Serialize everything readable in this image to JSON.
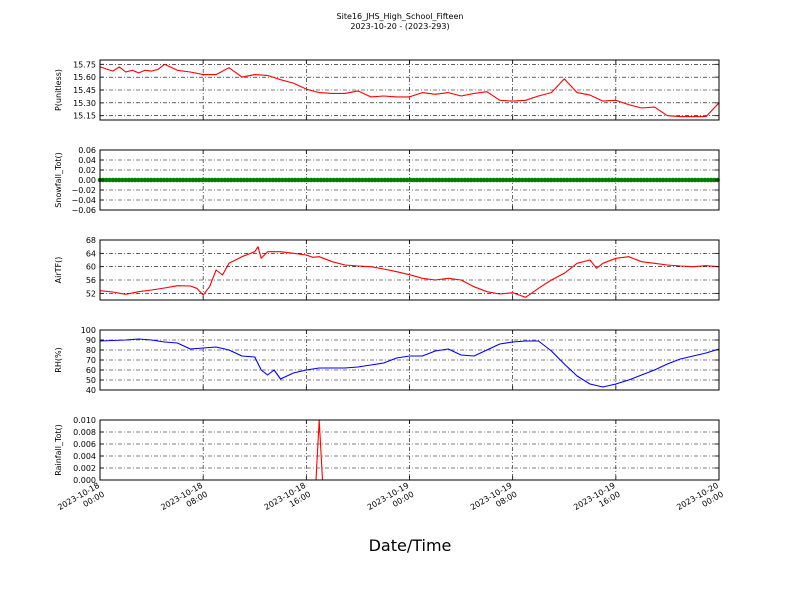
{
  "title": "Site16_JHS_High_School_Fifteen",
  "subtitle": "2023-10-20 - (2023-293)",
  "xlabel": "Date/Time",
  "x_range": [
    "2023-10-18 00:00",
    "2023-10-20 00:00"
  ],
  "x_ticks": [
    {
      "t": "2023-10-18 00:00",
      "l1": "2023-10-18",
      "l2": "00:00"
    },
    {
      "t": "2023-10-18 08:00",
      "l1": "2023-10-18",
      "l2": "08:00"
    },
    {
      "t": "2023-10-18 16:00",
      "l1": "2023-10-18",
      "l2": "16:00"
    },
    {
      "t": "2023-10-19 00:00",
      "l1": "2023-10-19",
      "l2": "00:00"
    },
    {
      "t": "2023-10-19 08:00",
      "l1": "2023-10-19",
      "l2": "08:00"
    },
    {
      "t": "2023-10-19 16:00",
      "l1": "2023-10-19",
      "l2": "16:00"
    },
    {
      "t": "2023-10-20 00:00",
      "l1": "2023-10-20",
      "l2": "00:00"
    }
  ],
  "chart_data": [
    {
      "type": "line",
      "ylabel": "P(unitless)",
      "ylim": [
        15.1,
        15.8
      ],
      "yticks": [
        15.15,
        15.3,
        15.45,
        15.6,
        15.75
      ],
      "ytick_labels": [
        "15.15",
        "15.30",
        "15.45",
        "15.60",
        "15.75"
      ],
      "grid": true,
      "color": "#ff0000",
      "x": [
        "2023-10-18 00:00",
        "2023-10-18 01:00",
        "2023-10-18 01:30",
        "2023-10-18 02:00",
        "2023-10-18 02:30",
        "2023-10-18 03:00",
        "2023-10-18 03:30",
        "2023-10-18 04:00",
        "2023-10-18 04:30",
        "2023-10-18 05:00",
        "2023-10-18 06:00",
        "2023-10-18 07:00",
        "2023-10-18 08:00",
        "2023-10-18 09:00",
        "2023-10-18 10:00",
        "2023-10-18 11:00",
        "2023-10-18 12:00",
        "2023-10-18 13:00",
        "2023-10-18 14:00",
        "2023-10-18 15:00",
        "2023-10-18 16:00",
        "2023-10-18 17:00",
        "2023-10-18 18:00",
        "2023-10-18 19:00",
        "2023-10-18 20:00",
        "2023-10-18 21:00",
        "2023-10-18 22:00",
        "2023-10-18 23:00",
        "2023-10-19 00:00",
        "2023-10-19 01:00",
        "2023-10-19 02:00",
        "2023-10-19 03:00",
        "2023-10-19 04:00",
        "2023-10-19 05:00",
        "2023-10-19 06:00",
        "2023-10-19 07:00",
        "2023-10-19 08:00",
        "2023-10-19 09:00",
        "2023-10-19 10:00",
        "2023-10-19 11:00",
        "2023-10-19 12:00",
        "2023-10-19 13:00",
        "2023-10-19 14:00",
        "2023-10-19 15:00",
        "2023-10-19 16:00",
        "2023-10-19 17:00",
        "2023-10-19 18:00",
        "2023-10-19 19:00",
        "2023-10-19 20:00",
        "2023-10-19 21:00",
        "2023-10-19 22:00",
        "2023-10-19 23:00",
        "2023-10-20 00:00"
      ],
      "y": [
        15.72,
        15.67,
        15.72,
        15.66,
        15.68,
        15.65,
        15.68,
        15.67,
        15.69,
        15.75,
        15.68,
        15.66,
        15.63,
        15.63,
        15.71,
        15.6,
        15.63,
        15.62,
        15.57,
        15.53,
        15.46,
        15.42,
        15.41,
        15.41,
        15.44,
        15.37,
        15.38,
        15.37,
        15.37,
        15.42,
        15.4,
        15.42,
        15.38,
        15.41,
        15.43,
        15.33,
        15.32,
        15.33,
        15.38,
        15.42,
        15.58,
        15.42,
        15.39,
        15.32,
        15.33,
        15.28,
        15.24,
        15.25,
        15.15,
        15.14,
        15.14,
        15.14,
        15.3
      ]
    },
    {
      "type": "scatter",
      "ylabel": "Snowfall_Tot()",
      "ylim": [
        -0.06,
        0.06
      ],
      "yticks": [
        -0.06,
        -0.04,
        -0.02,
        0.0,
        0.02,
        0.04,
        0.06
      ],
      "ytick_labels": [
        "−0.06",
        "−0.04",
        "−0.02",
        "0.00",
        "0.02",
        "0.04",
        "0.06"
      ],
      "grid": true,
      "color": "#007f00",
      "constant_value": 0.0,
      "x_span": [
        "2023-10-18 00:00",
        "2023-10-20 00:00"
      ]
    },
    {
      "type": "line",
      "ylabel": "AirTF()",
      "ylim": [
        50,
        68
      ],
      "yticks": [
        52,
        56,
        60,
        64,
        68
      ],
      "ytick_labels": [
        "52",
        "56",
        "60",
        "64",
        "68"
      ],
      "grid": true,
      "color": "#ff0000",
      "x": [
        "2023-10-18 00:00",
        "2023-10-18 01:00",
        "2023-10-18 02:00",
        "2023-10-18 03:00",
        "2023-10-18 04:00",
        "2023-10-18 05:00",
        "2023-10-18 06:00",
        "2023-10-18 07:00",
        "2023-10-18 07:30",
        "2023-10-18 08:00",
        "2023-10-18 08:30",
        "2023-10-18 09:00",
        "2023-10-18 09:30",
        "2023-10-18 10:00",
        "2023-10-18 11:00",
        "2023-10-18 12:00",
        "2023-10-18 12:15",
        "2023-10-18 12:30",
        "2023-10-18 13:00",
        "2023-10-18 14:00",
        "2023-10-18 15:00",
        "2023-10-18 16:00",
        "2023-10-18 16:30",
        "2023-10-18 17:00",
        "2023-10-18 18:00",
        "2023-10-18 19:00",
        "2023-10-18 20:00",
        "2023-10-18 21:00",
        "2023-10-18 22:00",
        "2023-10-18 23:00",
        "2023-10-19 00:00",
        "2023-10-19 01:00",
        "2023-10-19 02:00",
        "2023-10-19 03:00",
        "2023-10-19 04:00",
        "2023-10-19 05:00",
        "2023-10-19 06:00",
        "2023-10-19 07:00",
        "2023-10-19 08:00",
        "2023-10-19 08:30",
        "2023-10-19 09:00",
        "2023-10-19 10:00",
        "2023-10-19 11:00",
        "2023-10-19 12:00",
        "2023-10-19 13:00",
        "2023-10-19 14:00",
        "2023-10-19 14:30",
        "2023-10-19 15:00",
        "2023-10-19 16:00",
        "2023-10-19 17:00",
        "2023-10-19 18:00",
        "2023-10-19 19:00",
        "2023-10-19 20:00",
        "2023-10-19 21:00",
        "2023-10-19 22:00",
        "2023-10-19 23:00",
        "2023-10-20 00:00"
      ],
      "y": [
        52.8,
        52.4,
        51.7,
        52.5,
        53.0,
        53.6,
        54.3,
        54.2,
        53.5,
        51.5,
        54.0,
        59.0,
        57.5,
        61.0,
        63.0,
        64.5,
        66.0,
        62.5,
        64.5,
        64.5,
        64.0,
        63.5,
        62.8,
        63.0,
        61.5,
        60.5,
        60.2,
        60.0,
        59.3,
        58.5,
        57.6,
        56.5,
        56.0,
        56.5,
        56.0,
        54.0,
        52.5,
        51.8,
        52.2,
        51.5,
        50.8,
        53.5,
        56.0,
        58.0,
        61.0,
        62.0,
        59.5,
        61.0,
        62.5,
        63.0,
        61.5,
        61.0,
        60.5,
        60.2,
        60.0,
        60.3,
        60.0
      ]
    },
    {
      "type": "line",
      "ylabel": "RH(%)",
      "ylim": [
        40,
        100
      ],
      "yticks": [
        40,
        50,
        60,
        70,
        80,
        90,
        100
      ],
      "ytick_labels": [
        "40",
        "50",
        "60",
        "70",
        "80",
        "90",
        "100"
      ],
      "grid": true,
      "color": "#0000ff",
      "x": [
        "2023-10-18 00:00",
        "2023-10-18 02:00",
        "2023-10-18 03:00",
        "2023-10-18 04:00",
        "2023-10-18 05:00",
        "2023-10-18 06:00",
        "2023-10-18 07:00",
        "2023-10-18 08:00",
        "2023-10-18 09:00",
        "2023-10-18 10:00",
        "2023-10-18 11:00",
        "2023-10-18 12:00",
        "2023-10-18 12:30",
        "2023-10-18 13:00",
        "2023-10-18 13:30",
        "2023-10-18 14:00",
        "2023-10-18 15:00",
        "2023-10-18 16:00",
        "2023-10-18 17:00",
        "2023-10-18 18:00",
        "2023-10-18 19:00",
        "2023-10-18 20:00",
        "2023-10-18 21:00",
        "2023-10-18 22:00",
        "2023-10-18 23:00",
        "2023-10-19 00:00",
        "2023-10-19 01:00",
        "2023-10-19 02:00",
        "2023-10-19 03:00",
        "2023-10-19 04:00",
        "2023-10-19 05:00",
        "2023-10-19 06:00",
        "2023-10-19 07:00",
        "2023-10-19 08:00",
        "2023-10-19 09:00",
        "2023-10-19 10:00",
        "2023-10-19 11:00",
        "2023-10-19 12:00",
        "2023-10-19 13:00",
        "2023-10-19 14:00",
        "2023-10-19 15:00",
        "2023-10-19 16:00",
        "2023-10-19 17:00",
        "2023-10-19 18:00",
        "2023-10-19 19:00",
        "2023-10-19 20:00",
        "2023-10-19 21:00",
        "2023-10-19 22:00",
        "2023-10-19 23:00",
        "2023-10-20 00:00"
      ],
      "y": [
        89,
        90,
        91,
        90,
        88,
        87,
        81,
        82,
        83,
        80,
        74,
        73,
        60,
        55,
        60,
        51,
        57,
        60,
        62,
        62,
        62,
        63,
        65,
        67,
        72,
        74,
        74,
        79,
        81,
        75,
        74,
        80,
        86,
        88,
        89,
        89,
        79,
        66,
        54,
        46,
        43,
        46,
        50,
        55,
        60,
        66,
        71,
        74,
        77,
        81
      ]
    },
    {
      "type": "line",
      "ylabel": "Rainfall_Tot()",
      "ylim": [
        0.0,
        0.01
      ],
      "yticks": [
        0.0,
        0.002,
        0.004,
        0.006,
        0.008,
        0.01
      ],
      "ytick_labels": [
        "0.000",
        "0.002",
        "0.004",
        "0.006",
        "0.008",
        "0.010"
      ],
      "grid": true,
      "color": "#ff0000",
      "x": [
        "2023-10-18 00:00",
        "2023-10-18 16:45",
        "2023-10-18 17:00",
        "2023-10-18 17:15",
        "2023-10-20 00:00"
      ],
      "y": [
        0.0,
        0.0,
        0.01,
        0.0,
        0.0
      ]
    }
  ]
}
